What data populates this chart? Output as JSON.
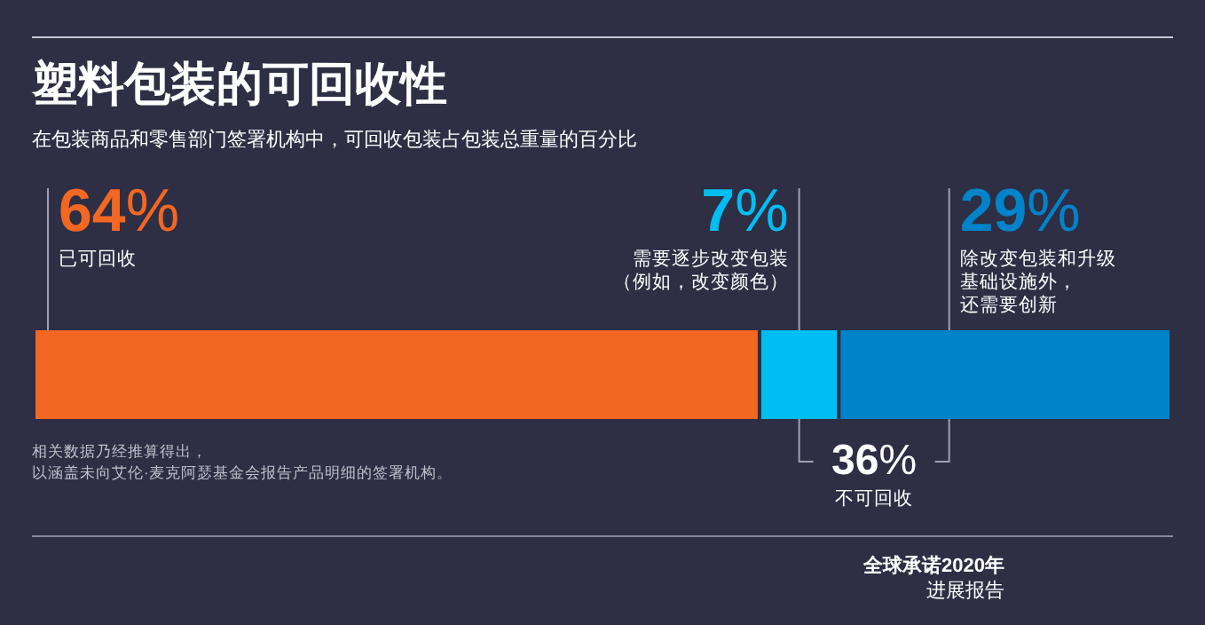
{
  "chart_data": {
    "type": "bar",
    "orientation": "horizontal",
    "stacked": true,
    "title": "塑料包装的可回收性",
    "subtitle": "在包装商品和零售部门签署机构中，可回收包装占包装总重量的百分比",
    "categories": [
      null
    ],
    "xlim": [
      0,
      100
    ],
    "series": [
      {
        "color": "#f26722",
        "values": [
          64
        ],
        "value_labels": [
          "64%"
        ]
      },
      {
        "color": "#00bef2",
        "values": [
          7
        ],
        "value_labels": [
          "7%"
        ]
      },
      {
        "color": "#0083c9",
        "values": [
          29
        ],
        "value_labels": [
          "29%"
        ]
      }
    ],
    "annotations": [
      "已可回收",
      "需要逐步改变包装",
      "（例如，改变颜色）",
      "除改变包装和升级",
      "基础设施外，",
      "还需要创新",
      "36%",
      "不可回收",
      "相关数据乃经推算得出，",
      "以涵盖未向艾伦·麦克阿瑟基金会报告产品明细的签署机构。",
      "全球承诺2020年",
      "进展报告"
    ]
  }
}
